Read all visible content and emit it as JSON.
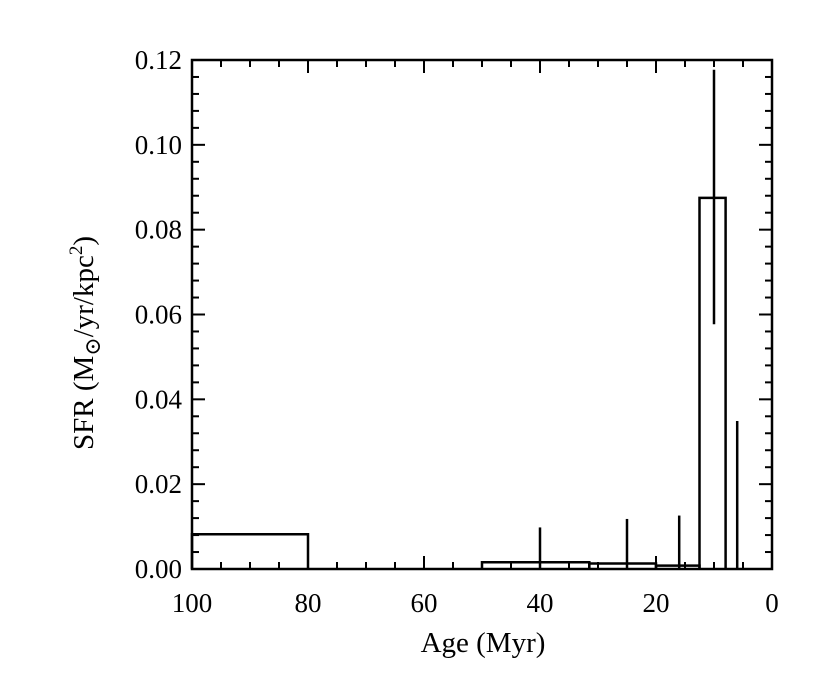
{
  "chart_data": {
    "type": "bar",
    "xlabel": "Age (Myr)",
    "ylabel_parts": {
      "prefix": "SFR (M",
      "sun_symbol": "⊙",
      "middle": "/yr/kpc",
      "exponent": "2",
      "suffix": ")"
    },
    "xlim": [
      100,
      0
    ],
    "ylim": [
      0,
      0.12
    ],
    "x_ticks": [
      100,
      80,
      60,
      40,
      20,
      0
    ],
    "x_tick_labels": [
      "100",
      "80",
      "60",
      "40",
      "20",
      "0"
    ],
    "y_ticks": [
      0.0,
      0.02,
      0.04,
      0.06,
      0.08,
      0.1,
      0.12
    ],
    "y_tick_labels": [
      "0.00",
      "0.02",
      "0.04",
      "0.06",
      "0.08",
      "0.10",
      "0.12"
    ],
    "bins": [
      {
        "age_min": 80,
        "age_max": 100,
        "sfr": 0.0082
      },
      {
        "age_min": 50,
        "age_max": 80,
        "sfr": 0.0
      },
      {
        "age_min": 31.5,
        "age_max": 50,
        "sfr": 0.0016
      },
      {
        "age_min": 20,
        "age_max": 31.5,
        "sfr": 0.0013
      },
      {
        "age_min": 12.5,
        "age_max": 20,
        "sfr": 0.0008
      },
      {
        "age_min": 8,
        "age_max": 12.5,
        "sfr": 0.0875
      },
      {
        "age_min": 0,
        "age_max": 8,
        "sfr": 0.0
      }
    ],
    "error_bars": [
      {
        "age": 40,
        "low": 0.0,
        "high": 0.0098
      },
      {
        "age": 25,
        "low": 0.0,
        "high": 0.0118
      },
      {
        "age": 16,
        "low": 0.0,
        "high": 0.0126
      },
      {
        "age": 10,
        "low": 0.0577,
        "high": 0.1177
      },
      {
        "age": 6,
        "low": 0.0,
        "high": 0.0349
      }
    ],
    "grid": false,
    "legend": "none"
  }
}
